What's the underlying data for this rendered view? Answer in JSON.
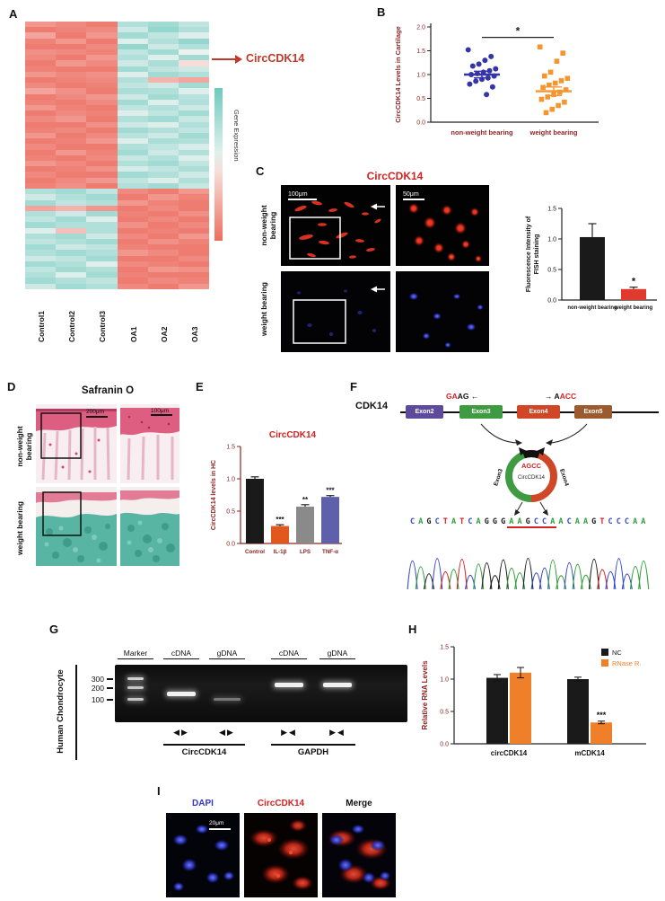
{
  "panelA": {
    "label": "A",
    "annotation": "CircCDK14",
    "legend_title": "Gene Expression",
    "columns": [
      "Control1",
      "Control2",
      "Control3",
      "OA1",
      "OA2",
      "OA3"
    ],
    "heatmap_rows": [
      [
        0.7,
        0.8,
        0.9,
        -0.5,
        -0.6,
        -0.4
      ],
      [
        0.9,
        0.85,
        0.8,
        -0.3,
        -0.7,
        -0.5
      ],
      [
        0.6,
        0.9,
        0.7,
        -0.6,
        -0.4,
        -0.2
      ],
      [
        0.85,
        0.7,
        0.9,
        -0.2,
        -0.5,
        -0.7
      ],
      [
        0.9,
        0.9,
        0.8,
        -0.7,
        -0.3,
        -0.5
      ],
      [
        0.75,
        0.8,
        0.85,
        -0.4,
        -0.6,
        -0.1
      ],
      [
        0.8,
        0.9,
        0.7,
        -0.5,
        -0.2,
        -0.6
      ],
      [
        0.9,
        0.7,
        0.8,
        -0.3,
        -0.55,
        0.2
      ],
      [
        0.85,
        0.9,
        0.9,
        -0.6,
        -0.4,
        -0.3
      ],
      [
        0.7,
        0.8,
        0.75,
        -0.2,
        -0.6,
        -0.5
      ],
      [
        0.9,
        0.85,
        0.8,
        -0.5,
        0.5,
        0.6
      ],
      [
        0.8,
        0.9,
        0.85,
        -0.4,
        -0.3,
        -0.6
      ],
      [
        0.6,
        0.75,
        0.9,
        -0.55,
        -0.5,
        -0.2
      ],
      [
        0.9,
        0.8,
        0.7,
        -0.3,
        -0.6,
        -0.45
      ],
      [
        0.85,
        0.9,
        0.8,
        -0.6,
        -0.2,
        -0.5
      ],
      [
        0.7,
        0.85,
        0.9,
        -0.4,
        -0.5,
        -0.3
      ],
      [
        0.9,
        0.8,
        0.85,
        -0.2,
        -0.4,
        -0.6
      ],
      [
        0.8,
        0.7,
        0.9,
        -0.5,
        -0.6,
        -0.35
      ],
      [
        0.9,
        0.9,
        0.75,
        -0.3,
        -0.2,
        -0.5
      ],
      [
        0.85,
        0.8,
        0.9,
        -0.6,
        -0.5,
        -0.4
      ],
      [
        0.7,
        0.9,
        0.8,
        -0.45,
        -0.3,
        -0.6
      ],
      [
        0.9,
        0.85,
        0.7,
        -0.2,
        -0.55,
        -0.5
      ],
      [
        0.8,
        0.9,
        0.9,
        -0.5,
        -0.4,
        -0.25
      ],
      [
        0.9,
        0.7,
        0.85,
        -0.6,
        -0.3,
        -0.5
      ],
      [
        0.85,
        0.9,
        0.8,
        -0.35,
        -0.5,
        -0.2
      ],
      [
        0.7,
        0.8,
        0.9,
        -0.5,
        -0.6,
        -0.4
      ],
      [
        0.9,
        0.85,
        0.75,
        -0.25,
        -0.4,
        -0.55
      ],
      [
        0.8,
        0.9,
        0.9,
        -0.6,
        -0.5,
        -0.3
      ],
      [
        0.9,
        0.8,
        0.7,
        -0.4,
        -0.2,
        -0.5
      ],
      [
        0.85,
        0.75,
        0.9,
        -0.5,
        -0.6,
        -0.35
      ],
      [
        -0.5,
        -0.6,
        -0.4,
        0.8,
        0.9,
        0.7
      ],
      [
        -0.3,
        -0.5,
        -0.6,
        0.9,
        0.7,
        0.85
      ],
      [
        -0.6,
        -0.4,
        -0.5,
        0.7,
        0.85,
        0.9
      ],
      [
        0.6,
        0.5,
        0.7,
        0.9,
        0.8,
        0.9
      ],
      [
        -0.5,
        -0.3,
        -0.6,
        0.85,
        0.9,
        0.75
      ],
      [
        -0.4,
        -0.6,
        -0.2,
        0.9,
        0.8,
        0.9
      ],
      [
        -0.6,
        -0.5,
        -0.5,
        0.75,
        0.9,
        0.8
      ],
      [
        -0.2,
        0.4,
        -0.5,
        0.9,
        0.85,
        0.9
      ],
      [
        -0.5,
        -0.6,
        -0.3,
        0.8,
        0.9,
        0.7
      ],
      [
        -0.4,
        -0.5,
        -0.6,
        0.9,
        0.75,
        0.85
      ],
      [
        -0.6,
        -0.3,
        -0.4,
        0.85,
        0.9,
        0.9
      ],
      [
        -0.5,
        -0.6,
        -0.5,
        0.7,
        0.8,
        0.9
      ],
      [
        -0.3,
        -0.4,
        -0.6,
        0.9,
        0.9,
        0.8
      ],
      [
        -0.6,
        -0.5,
        -0.2,
        0.8,
        0.85,
        0.9
      ],
      [
        -0.4,
        -0.6,
        -0.5,
        0.9,
        0.7,
        0.75
      ],
      [
        -0.5,
        -0.2,
        -0.6,
        0.85,
        0.9,
        0.9
      ],
      [
        -0.6,
        -0.5,
        -0.4,
        0.9,
        0.8,
        0.85
      ],
      [
        -0.3,
        -0.6,
        -0.5,
        0.8,
        0.9,
        0.7
      ]
    ]
  },
  "panelB": {
    "label": "B",
    "chart": {
      "type": "scatter",
      "ylabel": "CircCDK14 Levels in Cartilage",
      "ylim": [
        0,
        2.0
      ],
      "yticks": [
        "0.0",
        "0.5",
        "1.0",
        "1.5",
        "2.0"
      ],
      "categories": [
        "non-weight bearing",
        "weight bearing"
      ],
      "significance": "*",
      "groups": [
        {
          "name": "non-weight bearing",
          "marker": "circle",
          "color": "#3535a8",
          "mean": 1.0,
          "sem": 0.07,
          "values": [
            1.52,
            1.38,
            1.3,
            1.22,
            1.18,
            1.12,
            1.08,
            1.05,
            1.02,
            1.0,
            0.97,
            0.93,
            0.9,
            0.86,
            0.8,
            0.74,
            0.58
          ]
        },
        {
          "name": "weight bearing",
          "marker": "square",
          "color": "#f5952e",
          "mean": 0.65,
          "sem": 0.09,
          "values": [
            1.58,
            1.45,
            1.28,
            1.05,
            0.97,
            0.92,
            0.87,
            0.82,
            0.78,
            0.73,
            0.68,
            0.63,
            0.58,
            0.53,
            0.48,
            0.42,
            0.35,
            0.27,
            0.2
          ]
        }
      ]
    }
  },
  "panelC": {
    "label": "C",
    "title": "CircCDK14",
    "row_labels": [
      "non-weight bearing",
      "weight bearing"
    ],
    "scale_bars": [
      "100μm",
      "50μm"
    ],
    "chart": {
      "type": "bar",
      "ylabel_lines": [
        "Fluorescence Intensity of",
        "FISH staining"
      ],
      "ylim": [
        0,
        1.5
      ],
      "yticks": [
        "0.0",
        "0.5",
        "1.0",
        "1.5"
      ],
      "categories": [
        "non-weight bearing",
        "weight bearing"
      ],
      "values": [
        1.03,
        0.18
      ],
      "errors": [
        0.22,
        0.03
      ],
      "bar_colors": [
        "#1a1a1a",
        "#e03a2f"
      ],
      "significance": [
        "",
        "*"
      ]
    }
  },
  "panelD": {
    "label": "D",
    "title": "Safranin O",
    "row_labels": [
      "non-weight bearing",
      "weight bearing"
    ],
    "scale_bars": [
      "200μm",
      "100μm"
    ]
  },
  "panelE": {
    "label": "E",
    "chart": {
      "type": "bar",
      "title": "CircCDK14",
      "ylabel": "CircCDK14 levels in HC",
      "ylim": [
        0,
        1.5
      ],
      "yticks": [
        "0.0",
        "0.5",
        "1.0",
        "1.5"
      ],
      "categories": [
        "Control",
        "IL-1β",
        "LPS",
        "TNF-α"
      ],
      "values": [
        1.0,
        0.27,
        0.57,
        0.72
      ],
      "errors": [
        0.03,
        0.02,
        0.03,
        0.02
      ],
      "bar_colors": [
        "#1a1a1a",
        "#e2571c",
        "#8a8a8a",
        "#5d60aa"
      ],
      "significance": [
        "",
        "***",
        "**",
        "***"
      ]
    }
  },
  "panelF": {
    "label": "F",
    "gene": "CDK14",
    "left_junction": {
      "red": "GA",
      "black": "AG",
      "arrow": "←"
    },
    "right_junction": {
      "arrow": "→",
      "black": "A",
      "red": "ACC"
    },
    "exons": [
      {
        "name": "Exon2",
        "color": "#5d4a9c"
      },
      {
        "name": "Exon3",
        "color": "#3f9b41"
      },
      {
        "name": "Exon4",
        "color": "#cf4727"
      },
      {
        "name": "Exon5",
        "color": "#9c5b2e"
      }
    ],
    "circle": {
      "name": "CircCDK14",
      "junction": "AGCC",
      "left_label": "Exon3",
      "right_label": "Exon4"
    },
    "sequence": "CAGCTATCAGGGAAGCCAACAAGTCCCAA",
    "underline_start": 12,
    "underline_end": 17,
    "base_colors": {
      "A": "#2e9e3a",
      "C": "#3548c8",
      "G": "#1a1a1a",
      "T": "#d42121"
    }
  },
  "panelG": {
    "label": "G",
    "side_label": "Human Chondrocyte",
    "lane_labels": [
      "Marker",
      "cDNA",
      "gDNA",
      "cDNA",
      "gDNA"
    ],
    "ladder": [
      "300",
      "200",
      "100"
    ],
    "gene_labels": [
      "CircCDK14",
      "GAPDH"
    ],
    "icon_glyphs": {
      "divergent": "◀▶",
      "convergent": "▶◀"
    }
  },
  "panelH": {
    "label": "H",
    "chart": {
      "type": "bar",
      "ylabel": "Relative RNA Levels",
      "ylim": [
        0,
        1.5
      ],
      "yticks": [
        "0.0",
        "0.5",
        "1.0",
        "1.5"
      ],
      "categories": [
        "circCDK14",
        "mCDK14"
      ],
      "series": [
        {
          "name": "NC",
          "color": "#1a1a1a",
          "values": [
            1.02,
            1.0
          ],
          "errors": [
            0.05,
            0.03
          ]
        },
        {
          "name": "RNase R.",
          "color": "#f07f2a",
          "values": [
            1.1,
            0.33
          ],
          "errors": [
            0.08,
            0.02
          ]
        }
      ],
      "significance": {
        "group": "mCDK14",
        "series": "RNase R.",
        "label": "***"
      }
    }
  },
  "panelI": {
    "label": "I",
    "headers": [
      {
        "text": "DAPI",
        "color": "#3434c8"
      },
      {
        "text": "CircCDK14",
        "color": "#d42121"
      },
      {
        "text": "Merge",
        "color": "#111111"
      }
    ],
    "scale_bar": "20μm"
  }
}
